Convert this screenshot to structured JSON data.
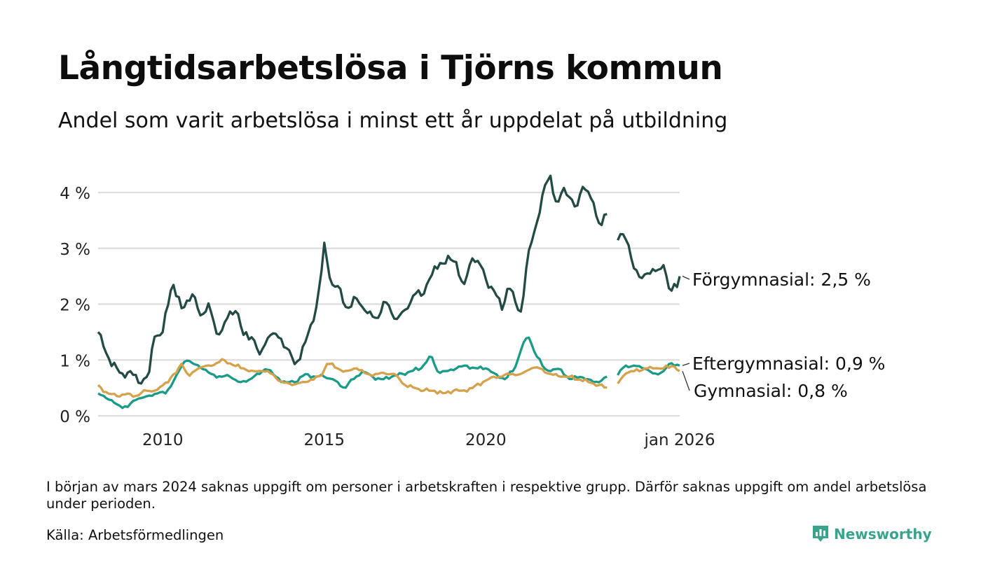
{
  "title": "Långtidsarbetslösa i Tjörns kommun",
  "subtitle": "Andel som varit arbetslösa i minst ett år uppdelat på utbildning",
  "note": "I början av mars 2024 saknas uppgift om personer i arbetskraften i respektive grupp. Därför saknas uppgift om andel arbetslösa under perioden.",
  "source": "Källa: Arbetsförmedlingen",
  "brand": {
    "name": "Newsworthy",
    "icon": "newsworthy-logo-icon"
  },
  "colors": {
    "forgymnasial": "#234a44",
    "eftergymnasial": "#1a9b87",
    "gymnasial": "#d4a24c",
    "grid": "#dddddd"
  },
  "chart_data": {
    "type": "line",
    "x_start": "2008-01",
    "x_end": "2026-01",
    "xlim": [
      2008.0,
      2026.0
    ],
    "ylim": [
      0,
      4.6
    ],
    "y_ticks": [
      0,
      1,
      2,
      3,
      4
    ],
    "y_tick_labels": [
      "0 %",
      "1 %",
      "2 %",
      "3 %",
      "4 %"
    ],
    "x_ticks": [
      2010,
      2015,
      2020,
      2026
    ],
    "x_tick_labels": [
      "2010",
      "2015",
      "2020",
      "jan 2026"
    ],
    "gap": [
      "2023-09",
      "2024-03"
    ],
    "series": [
      {
        "name": "Förgymnasial",
        "label": "Förgymnasial: 2,5 %",
        "last": 2.5,
        "anchors": [
          [
            2008.0,
            1.5
          ],
          [
            2008.3,
            1.05
          ],
          [
            2008.7,
            0.75
          ],
          [
            2009.0,
            0.8
          ],
          [
            2009.3,
            0.55
          ],
          [
            2009.6,
            0.8
          ],
          [
            2009.7,
            1.4
          ],
          [
            2010.0,
            1.5
          ],
          [
            2010.3,
            2.4
          ],
          [
            2010.6,
            1.9
          ],
          [
            2010.9,
            2.2
          ],
          [
            2011.2,
            1.75
          ],
          [
            2011.4,
            2.05
          ],
          [
            2011.7,
            1.4
          ],
          [
            2012.0,
            1.75
          ],
          [
            2012.3,
            1.9
          ],
          [
            2012.5,
            1.45
          ],
          [
            2012.8,
            1.4
          ],
          [
            2013.0,
            1.1
          ],
          [
            2013.3,
            1.45
          ],
          [
            2013.6,
            1.4
          ],
          [
            2013.9,
            1.2
          ],
          [
            2014.1,
            0.9
          ],
          [
            2014.4,
            1.3
          ],
          [
            2014.7,
            1.75
          ],
          [
            2014.9,
            2.5
          ],
          [
            2015.0,
            3.1
          ],
          [
            2015.2,
            2.35
          ],
          [
            2015.4,
            2.35
          ],
          [
            2015.7,
            1.9
          ],
          [
            2016.0,
            2.1
          ],
          [
            2016.3,
            1.85
          ],
          [
            2016.6,
            1.75
          ],
          [
            2016.9,
            2.05
          ],
          [
            2017.2,
            1.7
          ],
          [
            2017.5,
            1.9
          ],
          [
            2017.8,
            2.2
          ],
          [
            2018.0,
            2.15
          ],
          [
            2018.3,
            2.5
          ],
          [
            2018.6,
            2.75
          ],
          [
            2018.9,
            2.8
          ],
          [
            2019.1,
            2.75
          ],
          [
            2019.3,
            2.3
          ],
          [
            2019.6,
            2.85
          ],
          [
            2019.8,
            2.75
          ],
          [
            2020.0,
            2.45
          ],
          [
            2020.3,
            2.2
          ],
          [
            2020.5,
            1.9
          ],
          [
            2020.7,
            2.35
          ],
          [
            2020.9,
            2.05
          ],
          [
            2021.1,
            1.85
          ],
          [
            2021.3,
            2.9
          ],
          [
            2021.6,
            3.5
          ],
          [
            2021.8,
            4.1
          ],
          [
            2022.0,
            4.3
          ],
          [
            2022.2,
            3.75
          ],
          [
            2022.4,
            4.1
          ],
          [
            2022.6,
            3.9
          ],
          [
            2022.8,
            3.7
          ],
          [
            2023.0,
            4.1
          ],
          [
            2023.2,
            4.0
          ],
          [
            2023.4,
            3.6
          ],
          [
            2023.6,
            3.4
          ],
          [
            2023.7,
            3.7
          ],
          [
            2024.05,
            3.1
          ],
          [
            2024.2,
            3.3
          ],
          [
            2024.4,
            3.1
          ],
          [
            2024.6,
            2.6
          ],
          [
            2024.8,
            2.45
          ],
          [
            2025.0,
            2.55
          ],
          [
            2025.3,
            2.6
          ],
          [
            2025.5,
            2.7
          ],
          [
            2025.7,
            2.2
          ],
          [
            2026.0,
            2.45
          ]
        ]
      },
      {
        "name": "Eftergymnasial",
        "label": "Eftergymnasial: 0,9 %",
        "last": 0.9,
        "anchors": [
          [
            2008.0,
            0.4
          ],
          [
            2008.3,
            0.3
          ],
          [
            2008.6,
            0.2
          ],
          [
            2008.9,
            0.15
          ],
          [
            2009.2,
            0.3
          ],
          [
            2009.5,
            0.35
          ],
          [
            2009.8,
            0.4
          ],
          [
            2010.1,
            0.4
          ],
          [
            2010.4,
            0.7
          ],
          [
            2010.7,
            1.0
          ],
          [
            2010.9,
            0.95
          ],
          [
            2011.2,
            0.85
          ],
          [
            2011.5,
            0.75
          ],
          [
            2011.8,
            0.7
          ],
          [
            2012.1,
            0.7
          ],
          [
            2012.4,
            0.6
          ],
          [
            2012.7,
            0.65
          ],
          [
            2013.0,
            0.75
          ],
          [
            2013.2,
            0.85
          ],
          [
            2013.5,
            0.7
          ],
          [
            2013.8,
            0.6
          ],
          [
            2014.1,
            0.6
          ],
          [
            2014.4,
            0.75
          ],
          [
            2014.7,
            0.7
          ],
          [
            2015.0,
            0.7
          ],
          [
            2015.3,
            0.65
          ],
          [
            2015.6,
            0.5
          ],
          [
            2015.9,
            0.65
          ],
          [
            2016.2,
            0.8
          ],
          [
            2016.5,
            0.7
          ],
          [
            2016.8,
            0.65
          ],
          [
            2017.1,
            0.7
          ],
          [
            2017.4,
            0.75
          ],
          [
            2017.7,
            0.8
          ],
          [
            2018.0,
            0.85
          ],
          [
            2018.3,
            1.1
          ],
          [
            2018.5,
            0.8
          ],
          [
            2018.8,
            0.8
          ],
          [
            2019.1,
            0.85
          ],
          [
            2019.4,
            0.9
          ],
          [
            2019.7,
            0.85
          ],
          [
            2020.0,
            0.85
          ],
          [
            2020.3,
            0.75
          ],
          [
            2020.6,
            0.65
          ],
          [
            2020.9,
            0.85
          ],
          [
            2021.1,
            1.2
          ],
          [
            2021.3,
            1.45
          ],
          [
            2021.5,
            1.15
          ],
          [
            2021.8,
            0.85
          ],
          [
            2022.0,
            0.8
          ],
          [
            2022.3,
            0.85
          ],
          [
            2022.6,
            0.65
          ],
          [
            2022.9,
            0.7
          ],
          [
            2023.2,
            0.65
          ],
          [
            2023.5,
            0.6
          ],
          [
            2023.7,
            0.7
          ],
          [
            2024.05,
            0.7
          ],
          [
            2024.3,
            0.9
          ],
          [
            2024.6,
            0.9
          ],
          [
            2024.9,
            0.85
          ],
          [
            2025.2,
            0.75
          ],
          [
            2025.5,
            0.8
          ],
          [
            2025.7,
            0.95
          ],
          [
            2026.0,
            0.9
          ]
        ]
      },
      {
        "name": "Gymnasial",
        "label": "Gymnasial: 0,8 %",
        "last": 0.8,
        "anchors": [
          [
            2008.0,
            0.55
          ],
          [
            2008.3,
            0.4
          ],
          [
            2008.6,
            0.35
          ],
          [
            2008.9,
            0.4
          ],
          [
            2009.2,
            0.35
          ],
          [
            2009.5,
            0.45
          ],
          [
            2009.8,
            0.45
          ],
          [
            2010.1,
            0.6
          ],
          [
            2010.4,
            0.75
          ],
          [
            2010.6,
            0.95
          ],
          [
            2010.8,
            0.7
          ],
          [
            2011.1,
            0.85
          ],
          [
            2011.4,
            0.9
          ],
          [
            2011.7,
            0.95
          ],
          [
            2011.9,
            1.0
          ],
          [
            2012.2,
            0.9
          ],
          [
            2012.5,
            0.85
          ],
          [
            2012.8,
            0.8
          ],
          [
            2013.1,
            0.8
          ],
          [
            2013.4,
            0.75
          ],
          [
            2013.7,
            0.6
          ],
          [
            2014.0,
            0.55
          ],
          [
            2014.3,
            0.6
          ],
          [
            2014.6,
            0.65
          ],
          [
            2014.9,
            0.7
          ],
          [
            2015.1,
            0.95
          ],
          [
            2015.4,
            0.85
          ],
          [
            2015.7,
            0.8
          ],
          [
            2016.0,
            0.85
          ],
          [
            2016.3,
            0.75
          ],
          [
            2016.6,
            0.75
          ],
          [
            2016.9,
            0.75
          ],
          [
            2017.2,
            0.75
          ],
          [
            2017.5,
            0.55
          ],
          [
            2017.8,
            0.5
          ],
          [
            2018.1,
            0.45
          ],
          [
            2018.4,
            0.45
          ],
          [
            2018.7,
            0.4
          ],
          [
            2019.0,
            0.45
          ],
          [
            2019.3,
            0.45
          ],
          [
            2019.6,
            0.5
          ],
          [
            2019.9,
            0.6
          ],
          [
            2020.2,
            0.7
          ],
          [
            2020.5,
            0.7
          ],
          [
            2020.8,
            0.75
          ],
          [
            2021.1,
            0.75
          ],
          [
            2021.4,
            0.85
          ],
          [
            2021.7,
            0.85
          ],
          [
            2022.0,
            0.75
          ],
          [
            2022.3,
            0.7
          ],
          [
            2022.6,
            0.7
          ],
          [
            2022.9,
            0.65
          ],
          [
            2023.2,
            0.6
          ],
          [
            2023.5,
            0.55
          ],
          [
            2023.7,
            0.5
          ],
          [
            2024.05,
            0.55
          ],
          [
            2024.3,
            0.75
          ],
          [
            2024.6,
            0.8
          ],
          [
            2024.9,
            0.85
          ],
          [
            2025.2,
            0.85
          ],
          [
            2025.5,
            0.85
          ],
          [
            2025.8,
            0.9
          ],
          [
            2026.0,
            0.8
          ]
        ]
      }
    ]
  }
}
